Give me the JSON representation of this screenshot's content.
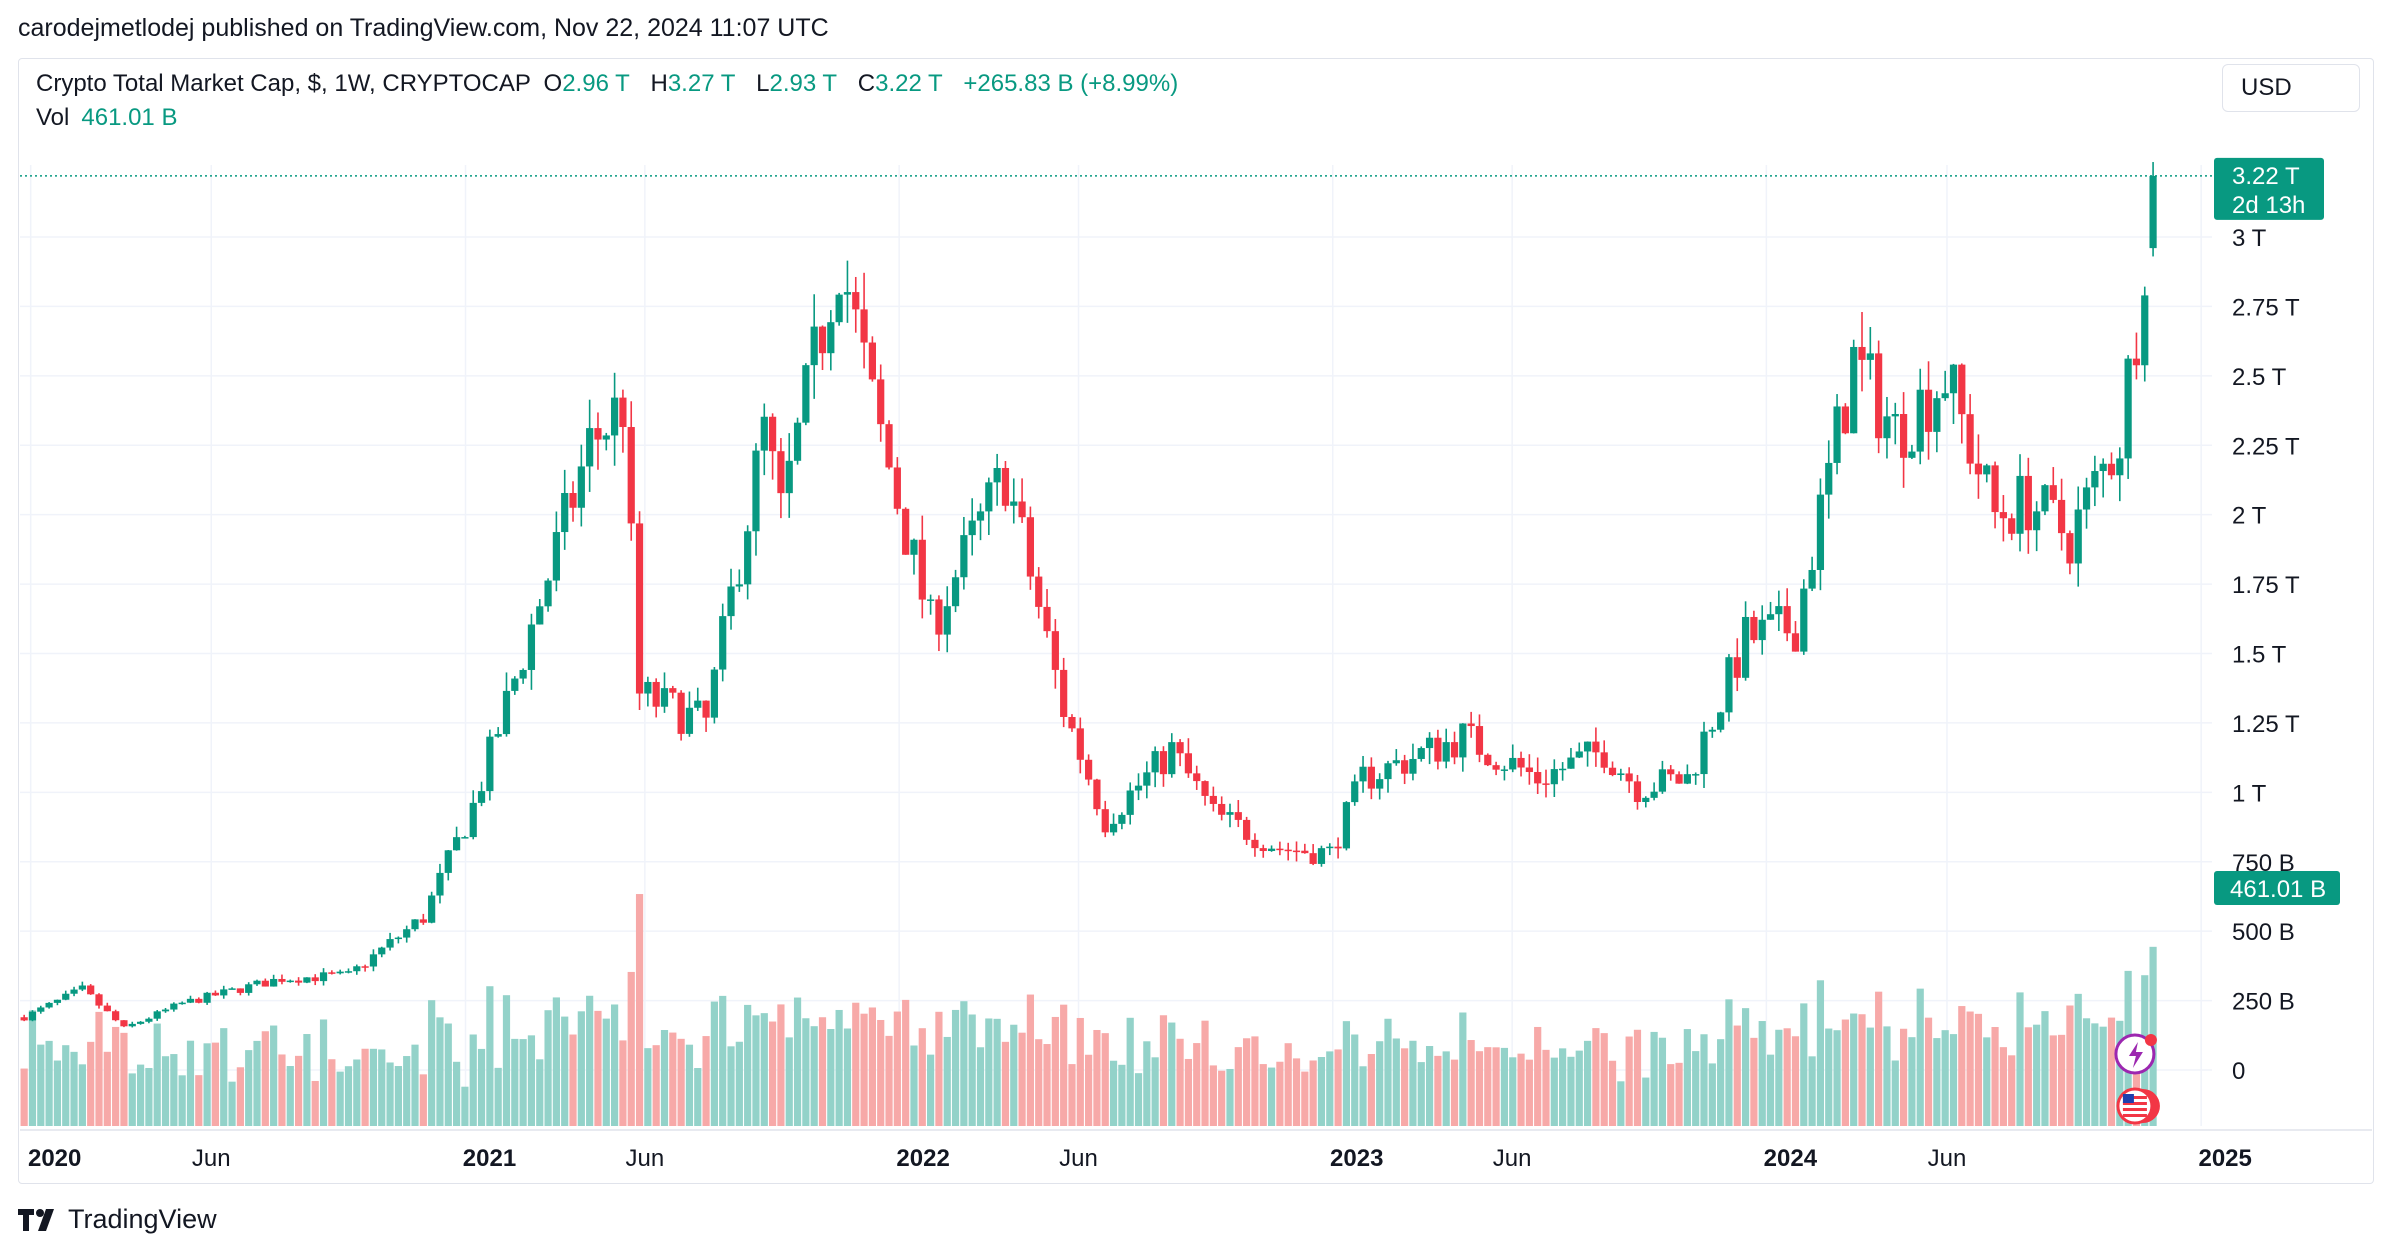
{
  "header": {
    "published_by": "carodejmetlodej published on TradingView.com, Nov 22, 2024 11:07 UTC"
  },
  "legend": {
    "title": "Crypto Total Market Cap, $, 1W, CRYPTOCAP",
    "open_label": "O",
    "open": "2.96 T",
    "high_label": "H",
    "high": "3.27 T",
    "low_label": "L",
    "low": "2.93 T",
    "close_label": "C",
    "close": "3.22 T",
    "change": "+265.83 B (+8.99%)",
    "vol_label": "Vol",
    "vol": "461.01 B"
  },
  "toolbar": {
    "currency": "USD"
  },
  "footer": {
    "brand": "TradingView"
  },
  "colors": {
    "up": "#089981",
    "down": "#f23645",
    "vol_up": "#93d2c9",
    "vol_down": "#f7a9a8",
    "grid": "#f0f3fa",
    "text": "#131722"
  },
  "chart_data": {
    "type": "candlestick",
    "timeframe": "1W",
    "x_range": [
      "2019-12-23",
      "2024-12-31"
    ],
    "y_range": [
      0,
      3.4
    ],
    "y_unit": "T",
    "grid": true,
    "y_tick_labels": [
      {
        "v": 0,
        "label": "0"
      },
      {
        "v": 0.25,
        "label": "250 B"
      },
      {
        "v": 0.5,
        "label": "500 B"
      },
      {
        "v": 0.75,
        "label": "750 B"
      },
      {
        "v": 1.0,
        "label": "1 T"
      },
      {
        "v": 1.25,
        "label": "1.25 T"
      },
      {
        "v": 1.5,
        "label": "1.5 T"
      },
      {
        "v": 1.75,
        "label": "1.75 T"
      },
      {
        "v": 2.0,
        "label": "2 T"
      },
      {
        "v": 2.25,
        "label": "2.25 T"
      },
      {
        "v": 2.5,
        "label": "2.5 T"
      },
      {
        "v": 2.75,
        "label": "2.75 T"
      },
      {
        "v": 3.0,
        "label": "3 T"
      }
    ],
    "x_tick_labels": [
      {
        "date": "2020-01-01",
        "label": "2020",
        "bold": true
      },
      {
        "date": "2020-06-01",
        "label": "Jun",
        "bold": false
      },
      {
        "date": "2021-01-01",
        "label": "2021",
        "bold": true
      },
      {
        "date": "2021-06-01",
        "label": "Jun",
        "bold": false
      },
      {
        "date": "2022-01-01",
        "label": "2022",
        "bold": true
      },
      {
        "date": "2022-06-01",
        "label": "Jun",
        "bold": false
      },
      {
        "date": "2023-01-01",
        "label": "2023",
        "bold": true
      },
      {
        "date": "2023-06-01",
        "label": "Jun",
        "bold": false
      },
      {
        "date": "2024-01-01",
        "label": "2024",
        "bold": true
      },
      {
        "date": "2024-06-01",
        "label": "Jun",
        "bold": false
      },
      {
        "date": "2025-01-01",
        "label": "2025",
        "bold": true
      }
    ],
    "price_badge": {
      "value": 3.22,
      "label": "3.22 T",
      "sublabel": "2d 13h"
    },
    "volume_badge": {
      "label": "461.01 B"
    },
    "volume_y_range": [
      0,
      750
    ],
    "volume_unit": "B",
    "close_series": [
      {
        "date": "2019-12-23",
        "c": 0.19
      },
      {
        "date": "2020-02-10",
        "c": 0.29
      },
      {
        "date": "2020-03-16",
        "c": 0.15
      },
      {
        "date": "2020-05-04",
        "c": 0.24
      },
      {
        "date": "2020-07-27",
        "c": 0.33
      },
      {
        "date": "2020-09-21",
        "c": 0.34
      },
      {
        "date": "2020-11-23",
        "c": 0.55
      },
      {
        "date": "2021-01-04",
        "c": 0.95
      },
      {
        "date": "2021-02-15",
        "c": 1.5
      },
      {
        "date": "2021-04-12",
        "c": 2.25
      },
      {
        "date": "2021-05-10",
        "c": 2.4
      },
      {
        "date": "2021-05-24",
        "c": 1.35
      },
      {
        "date": "2021-07-19",
        "c": 1.25
      },
      {
        "date": "2021-09-06",
        "c": 2.3
      },
      {
        "date": "2021-09-20",
        "c": 2.0
      },
      {
        "date": "2021-11-08",
        "c": 2.95
      },
      {
        "date": "2021-12-06",
        "c": 2.4
      },
      {
        "date": "2022-01-24",
        "c": 1.6
      },
      {
        "date": "2022-03-28",
        "c": 2.15
      },
      {
        "date": "2022-05-16",
        "c": 1.3
      },
      {
        "date": "2022-06-20",
        "c": 0.9
      },
      {
        "date": "2022-08-15",
        "c": 1.15
      },
      {
        "date": "2022-09-19",
        "c": 0.92
      },
      {
        "date": "2022-11-14",
        "c": 0.8
      },
      {
        "date": "2022-12-26",
        "c": 0.78
      },
      {
        "date": "2023-01-23",
        "c": 1.05
      },
      {
        "date": "2023-04-17",
        "c": 1.2
      },
      {
        "date": "2023-06-19",
        "c": 1.05
      },
      {
        "date": "2023-08-14",
        "c": 1.15
      },
      {
        "date": "2023-09-11",
        "c": 1.02
      },
      {
        "date": "2023-10-23",
        "c": 1.05
      },
      {
        "date": "2023-12-11",
        "c": 1.55
      },
      {
        "date": "2024-01-22",
        "c": 1.6
      },
      {
        "date": "2024-03-11",
        "c": 2.55
      },
      {
        "date": "2024-04-15",
        "c": 2.3
      },
      {
        "date": "2024-05-27",
        "c": 2.5
      },
      {
        "date": "2024-07-08",
        "c": 2.0
      },
      {
        "date": "2024-08-05",
        "c": 2.05
      },
      {
        "date": "2024-09-09",
        "c": 1.92
      },
      {
        "date": "2024-10-21",
        "c": 2.28
      },
      {
        "date": "2024-11-04",
        "c": 2.7
      },
      {
        "date": "2024-11-11",
        "c": 2.96
      },
      {
        "date": "2024-11-18",
        "c": 3.22
      }
    ],
    "last_candle": {
      "date": "2024-11-18",
      "open": 2.96,
      "high": 3.27,
      "low": 2.93,
      "close": 3.22,
      "volume": 461.01
    }
  }
}
